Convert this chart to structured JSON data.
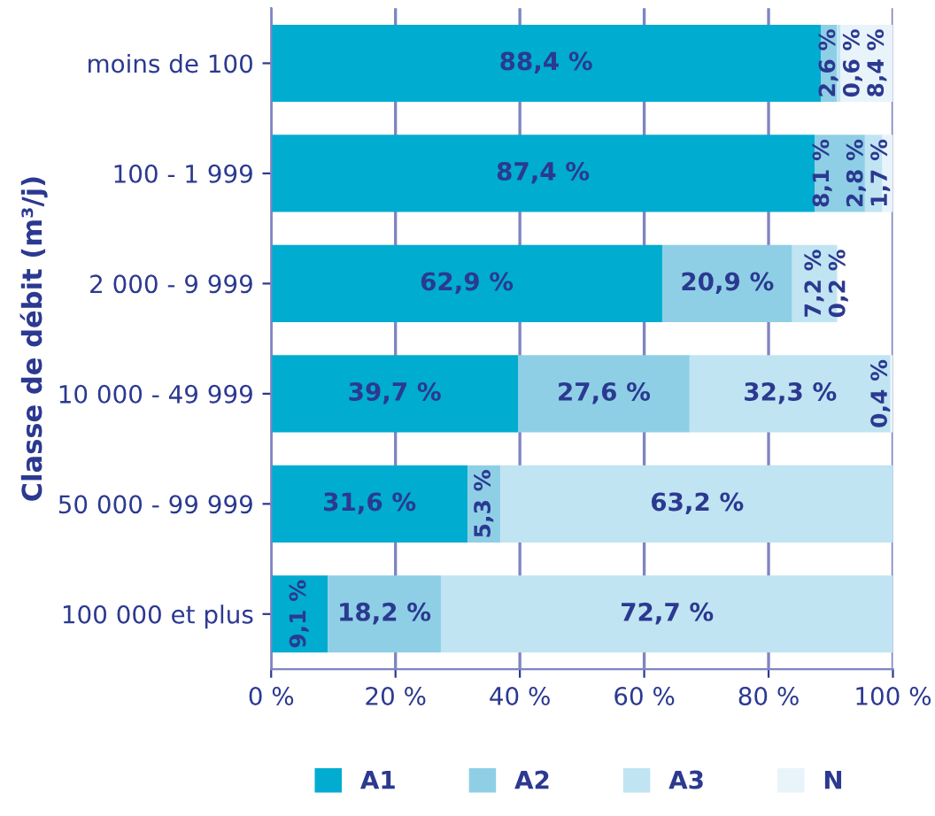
{
  "chart_data": {
    "type": "bar",
    "orientation": "horizontal",
    "stacked": true,
    "ylabel": "Classe de débit (m³/j)",
    "categories": [
      "moins de 100",
      "100 - 1 999",
      "2 000 - 9 999",
      "10 000 - 49 999",
      "50 000 - 99 999",
      "100 000 et plus"
    ],
    "series": [
      {
        "name": "A1",
        "color": "#00acd0",
        "values": [
          88.4,
          87.4,
          62.9,
          39.7,
          31.6,
          9.1
        ],
        "value_labels": [
          "88,4 %",
          "87,4 %",
          "62,9 %",
          "39,7 %",
          "31,6 %",
          "9,1 %"
        ]
      },
      {
        "name": "A2",
        "color": "#8ecfe6",
        "values": [
          2.6,
          8.1,
          20.9,
          27.6,
          5.3,
          18.2
        ],
        "value_labels": [
          "2,6 %",
          "8,1 %",
          "20,9 %",
          "27,6 %",
          "5,3 %",
          "18,2 %"
        ]
      },
      {
        "name": "A3",
        "color": "#c0e4f2",
        "values": [
          0.6,
          2.8,
          7.2,
          32.3,
          63.2,
          72.7
        ],
        "value_labels": [
          "0,6 %",
          "2,8 %",
          "7,2 %",
          "32,3 %",
          "63,2 %",
          "72,7 %"
        ]
      },
      {
        "name": "N",
        "color": "#e8f4fa",
        "values": [
          8.4,
          1.7,
          0.2,
          0.4,
          null,
          null
        ],
        "value_labels": [
          "8,4 %",
          "1,7 %",
          "0,2 %",
          "0,4 %",
          null,
          null
        ]
      }
    ],
    "xlim": [
      0,
      100
    ],
    "xticks": [
      {
        "value": 0,
        "label": "0 %"
      },
      {
        "value": 20,
        "label": "20 %"
      },
      {
        "value": 40,
        "label": "40 %"
      },
      {
        "value": 60,
        "label": "60 %"
      },
      {
        "value": 80,
        "label": "80 %"
      },
      {
        "value": 100,
        "label": "100 %"
      }
    ],
    "grid": "x",
    "legend": "bottom"
  }
}
